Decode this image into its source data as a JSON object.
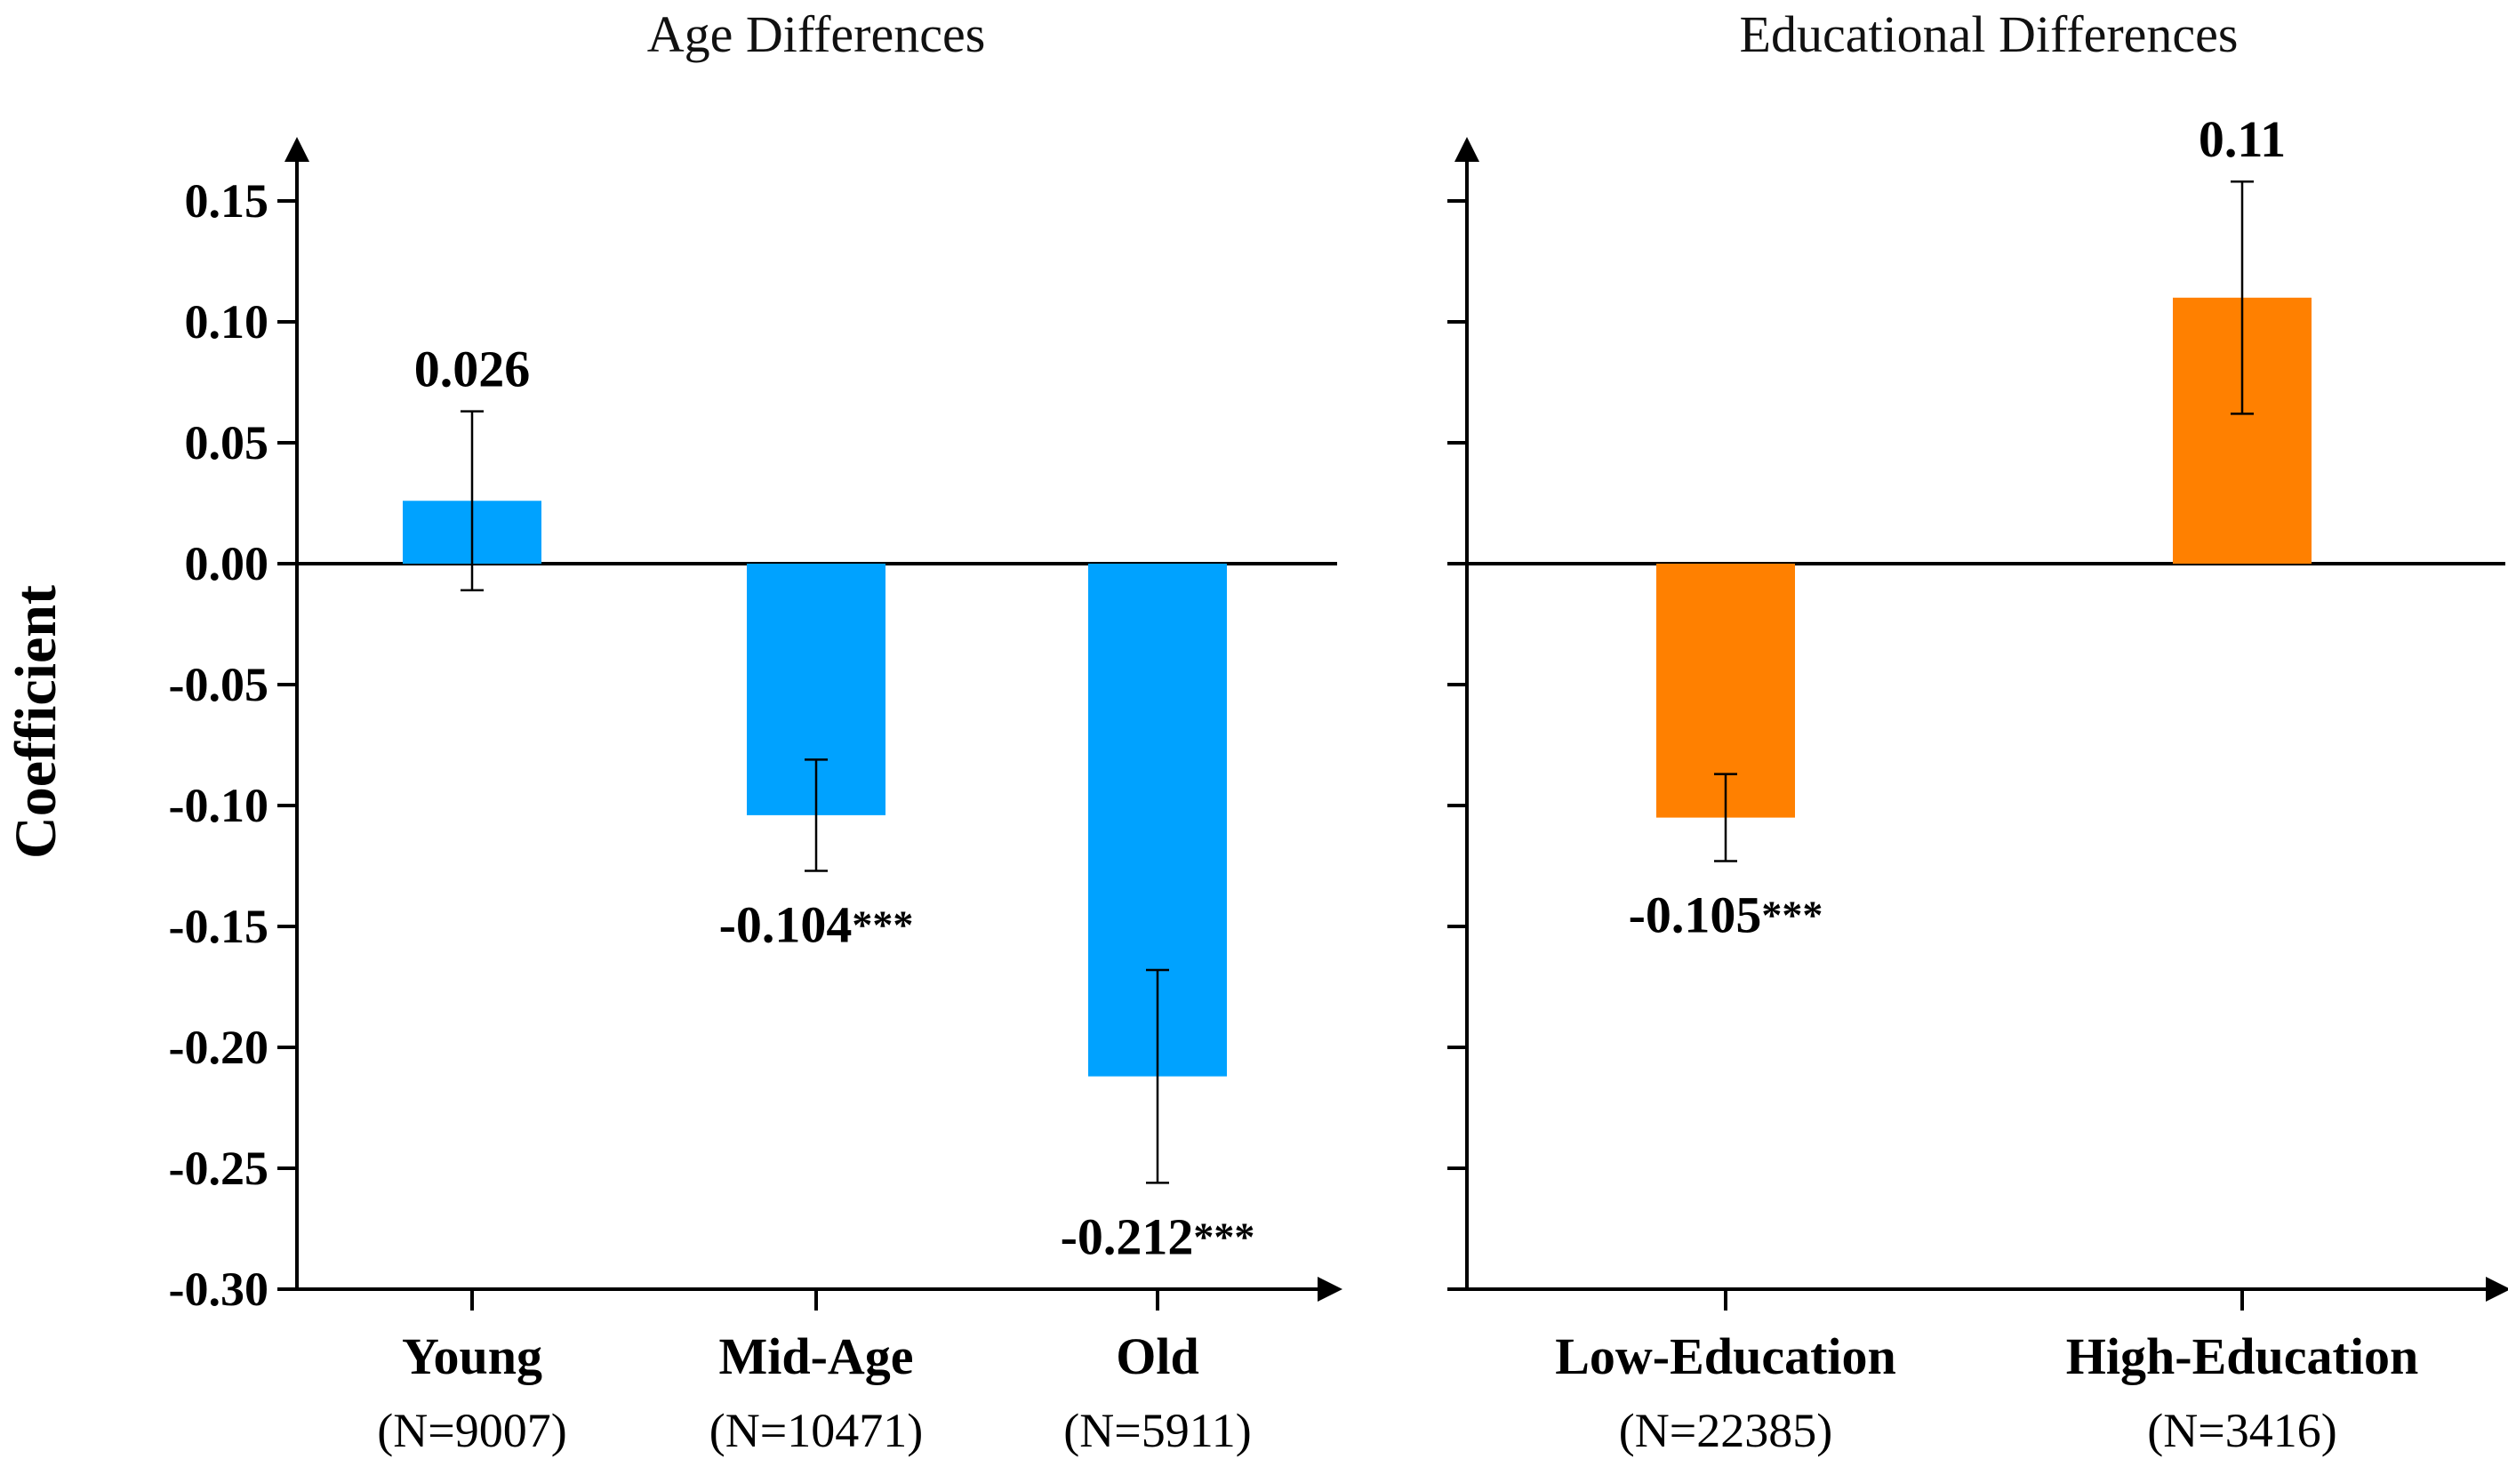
{
  "chart_data": {
    "type": "bar",
    "ylabel": "Coefficient",
    "ylim": [
      -0.3,
      0.15
    ],
    "yticks": [
      "0.15",
      "0.10",
      "0.05",
      "0.00",
      "-0.05",
      "-0.10",
      "-0.15",
      "-0.20",
      "-0.25",
      "-0.30"
    ],
    "ytick_values": [
      0.15,
      0.1,
      0.05,
      0.0,
      -0.05,
      -0.1,
      -0.15,
      -0.2,
      -0.25,
      -0.3
    ],
    "panels": [
      {
        "title": "Age Differences",
        "color": "#00a2ff",
        "categories": [
          "Young",
          "Mid-Age",
          "Old"
        ],
        "sample_sizes": [
          "(N=9007)",
          "(N=10471)",
          "(N=5911)"
        ],
        "values": [
          0.026,
          -0.104,
          -0.212
        ],
        "error_low": [
          -0.011,
          -0.127,
          -0.256
        ],
        "error_high": [
          0.063,
          -0.081,
          -0.168
        ],
        "value_labels": [
          "0.026",
          "-0.104",
          "-0.212"
        ],
        "significance": [
          "",
          "***",
          "***"
        ]
      },
      {
        "title": "Educational Differences",
        "color": "#ff8000",
        "categories": [
          "Low-Education",
          "High-Education"
        ],
        "sample_sizes": [
          "(N=22385)",
          "(N=3416)"
        ],
        "values": [
          -0.105,
          0.11
        ],
        "error_low": [
          -0.123,
          0.062
        ],
        "error_high": [
          -0.087,
          0.158
        ],
        "value_labels": [
          "-0.105",
          "0.11"
        ],
        "significance": [
          "***",
          ""
        ]
      }
    ]
  }
}
